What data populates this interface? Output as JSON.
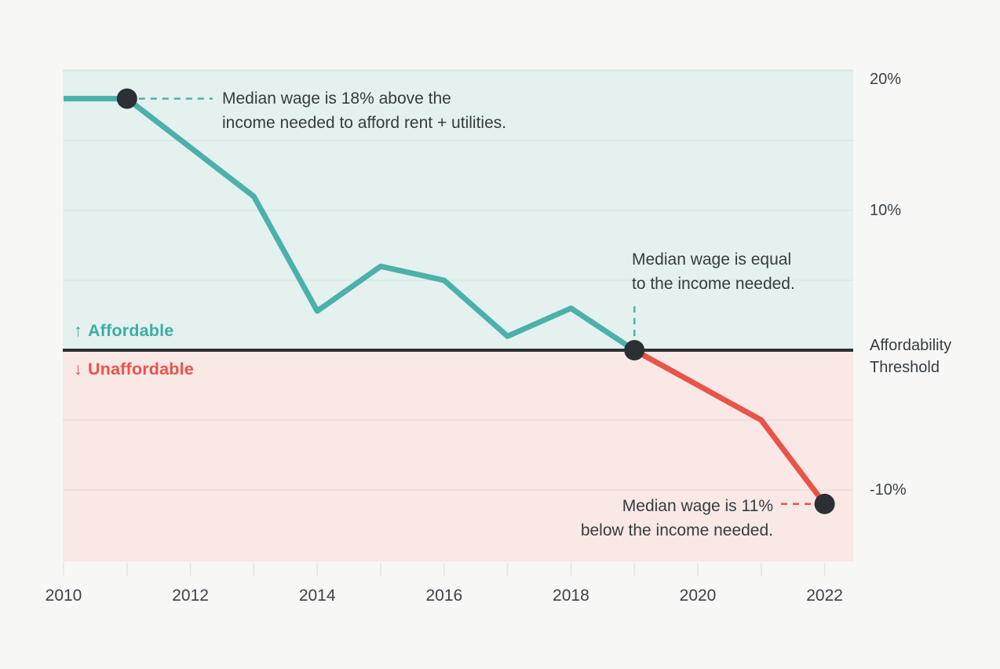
{
  "chart_data": {
    "type": "line",
    "title": "",
    "x_axis": {
      "tick_years": [
        2010,
        2011,
        2012,
        2013,
        2014,
        2015,
        2016,
        2017,
        2018,
        2019,
        2020,
        2021,
        2022
      ],
      "label_years": [
        "2010",
        "2012",
        "2014",
        "2016",
        "2018",
        "2020",
        "2022"
      ]
    },
    "y_axis": {
      "tick_values": [
        20,
        10,
        -10
      ],
      "tick_labels": [
        "20%",
        "10%",
        "-10%"
      ],
      "gridlines_above": [
        20,
        15,
        10,
        5
      ],
      "gridlines_below": [
        -5,
        -10
      ],
      "range": [
        -15,
        20
      ],
      "unit": "%"
    },
    "threshold": {
      "value": 0,
      "label": "Affordability\nThreshold"
    },
    "series": [
      {
        "name": "affordable",
        "color": "#4bb1a9",
        "points": [
          {
            "year": 2010,
            "value": 18
          },
          {
            "year": 2011,
            "value": 18
          },
          {
            "year": 2013,
            "value": 11
          },
          {
            "year": 2014,
            "value": 2.8
          },
          {
            "year": 2015,
            "value": 6
          },
          {
            "year": 2016,
            "value": 5
          },
          {
            "year": 2017,
            "value": 1
          },
          {
            "year": 2018,
            "value": 3
          },
          {
            "year": 2019,
            "value": 0
          }
        ]
      },
      {
        "name": "unaffordable",
        "color": "#e95348",
        "points": [
          {
            "year": 2019,
            "value": 0
          },
          {
            "year": 2021,
            "value": -5
          },
          {
            "year": 2022,
            "value": -11
          }
        ]
      }
    ],
    "markers": [
      {
        "year": 2011,
        "value": 18
      },
      {
        "year": 2019,
        "value": 0
      },
      {
        "year": 2022,
        "value": -11
      }
    ],
    "annotations": [
      {
        "text": "Median wage is 18% above the\nincome needed to afford rent + utilities.",
        "anchor_year": 2011,
        "anchor_value": 18,
        "connector_color": "#4bb1a9"
      },
      {
        "text": "Median wage is equal\nto the income needed.",
        "anchor_year": 2019,
        "anchor_value": 0,
        "connector_color": "#4bb1a9"
      },
      {
        "text": "Median wage is 11%\nbelow the income needed.",
        "anchor_year": 2022,
        "anchor_value": -11,
        "connector_color": "#e95348"
      }
    ],
    "region_labels": {
      "above_arrow": "↑",
      "above": "Affordable",
      "below_arrow": "↓",
      "below": "Unaffordable"
    },
    "colors": {
      "page_bg": "#f7f8f5",
      "above_bg": "#e4f1ef",
      "below_bg": "#f9e8e6",
      "above_grid": "#d4e9e6",
      "below_grid": "#f3d9d5",
      "line_above": "#4bb1a9",
      "line_below": "#e95348",
      "label_above": "#3dada4",
      "label_below": "#e9534a",
      "threshold_line": "#2b3034",
      "marker": "#2b3034",
      "text": "#363c3f",
      "axis_text": "#3c4246",
      "axis_tick": "#e4e4e1"
    }
  }
}
